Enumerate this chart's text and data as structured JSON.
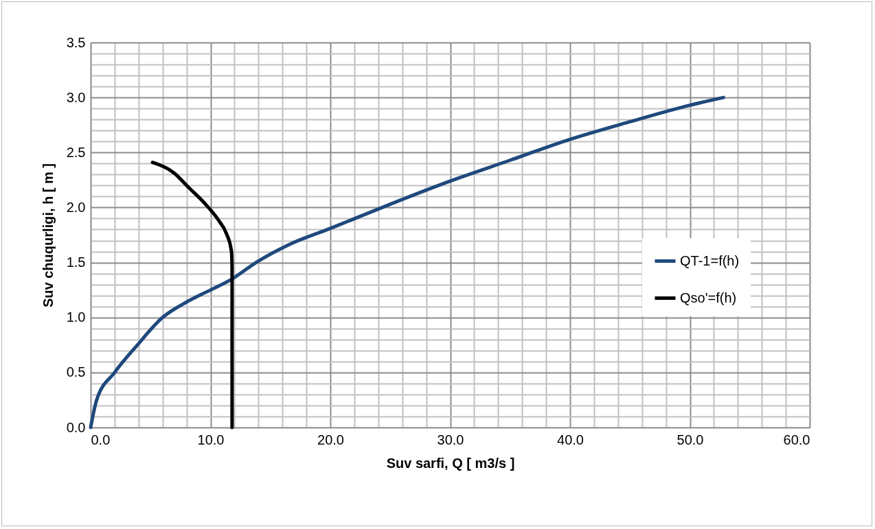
{
  "chart_data": {
    "type": "line",
    "xlabel": "Suv sarfi, Q [ m3/s ]",
    "ylabel": "Suv chuqurligi, h [ m ]",
    "xlim": [
      0,
      60
    ],
    "ylim": [
      0,
      3.5
    ],
    "xticks": [
      {
        "value": 0,
        "label": "0.0"
      },
      {
        "value": 10,
        "label": "10.0"
      },
      {
        "value": 20,
        "label": "20.0"
      },
      {
        "value": 30,
        "label": "30.0"
      },
      {
        "value": 40,
        "label": "40.0"
      },
      {
        "value": 50,
        "label": "50.0"
      },
      {
        "value": 60,
        "label": "60.0"
      }
    ],
    "yticks": [
      {
        "value": 0,
        "label": "0.0"
      },
      {
        "value": 0.5,
        "label": "0.5"
      },
      {
        "value": 1,
        "label": "1.0"
      },
      {
        "value": 1.5,
        "label": "1.5"
      },
      {
        "value": 2,
        "label": "2.0"
      },
      {
        "value": 2.5,
        "label": "2.5"
      },
      {
        "value": 3,
        "label": "3.0"
      },
      {
        "value": 3.5,
        "label": "3.5"
      }
    ],
    "grid": true,
    "legend": "right",
    "marker": "none",
    "line_style": "solid",
    "series": [
      {
        "name": "QT-1=f(h)",
        "color": "#1f497d",
        "x": [
          0,
          0.5,
          2.0,
          3.9,
          6.0,
          8.0,
          10.0,
          11.8,
          13.8,
          16.5,
          20,
          25,
          30,
          35,
          40,
          45,
          50,
          52.8
        ],
        "values": [
          0,
          0.25,
          0.5,
          0.75,
          1.0,
          1.14,
          1.25,
          1.35,
          1.5,
          1.66,
          1.81,
          2.03,
          2.24,
          2.43,
          2.62,
          2.78,
          2.93,
          3.0
        ]
      },
      {
        "name": "Qso'=f(h)",
        "color": "#000000",
        "x": [
          11.8,
          11.8,
          11.8,
          11.75,
          11.3,
          10.7,
          9.5,
          8.1,
          7.0,
          5.16
        ],
        "values": [
          0,
          0.8,
          1.45,
          1.6,
          1.77,
          1.88,
          2.04,
          2.19,
          2.31,
          2.41
        ]
      }
    ]
  }
}
